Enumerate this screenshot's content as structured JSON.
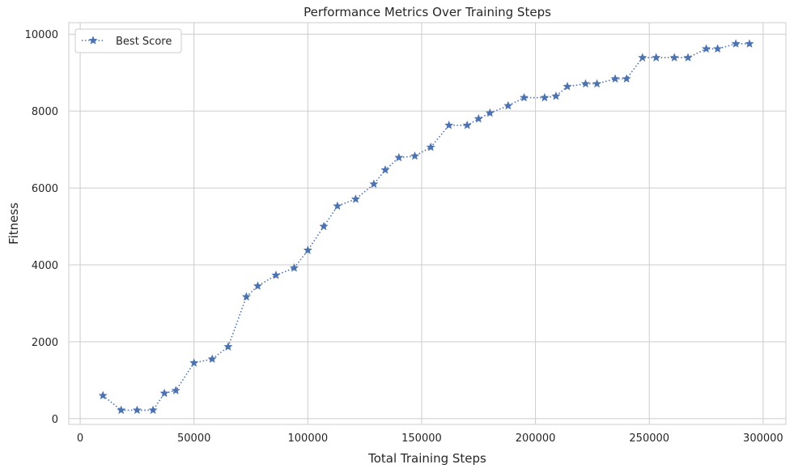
{
  "chart_data": {
    "type": "line",
    "title": "Performance Metrics Over Training Steps",
    "xlabel": "Total Training Steps",
    "ylabel": "Fitness",
    "xlim": [
      -5000,
      310000
    ],
    "ylim": [
      -150,
      10300
    ],
    "xticks": [
      0,
      50000,
      100000,
      150000,
      200000,
      250000,
      300000
    ],
    "yticks": [
      0,
      2000,
      4000,
      6000,
      8000,
      10000
    ],
    "grid": true,
    "legend_position": "top-left",
    "series": [
      {
        "name": "Best Score",
        "color": "#4c72b0",
        "line_style": "dotted",
        "marker": "star",
        "x": [
          10000,
          18000,
          25000,
          32000,
          37000,
          42000,
          50000,
          58000,
          65000,
          73000,
          78000,
          86000,
          94000,
          100000,
          107000,
          113000,
          121000,
          129000,
          134000,
          140000,
          147000,
          154000,
          162000,
          170000,
          175000,
          180000,
          188000,
          195000,
          204000,
          209000,
          214000,
          222000,
          227000,
          235000,
          240000,
          247000,
          253000,
          261000,
          267000,
          275000,
          280000,
          288000,
          294000
        ],
        "y": [
          600,
          220,
          220,
          220,
          660,
          730,
          1450,
          1550,
          1870,
          3170,
          3450,
          3730,
          3920,
          4380,
          5000,
          5530,
          5710,
          6100,
          6470,
          6790,
          6830,
          7060,
          7630,
          7630,
          7800,
          7950,
          8140,
          8350,
          8350,
          8390,
          8640,
          8710,
          8710,
          8840,
          8840,
          9390,
          9390,
          9390,
          9390,
          9620,
          9620,
          9750,
          9750
        ]
      }
    ]
  }
}
